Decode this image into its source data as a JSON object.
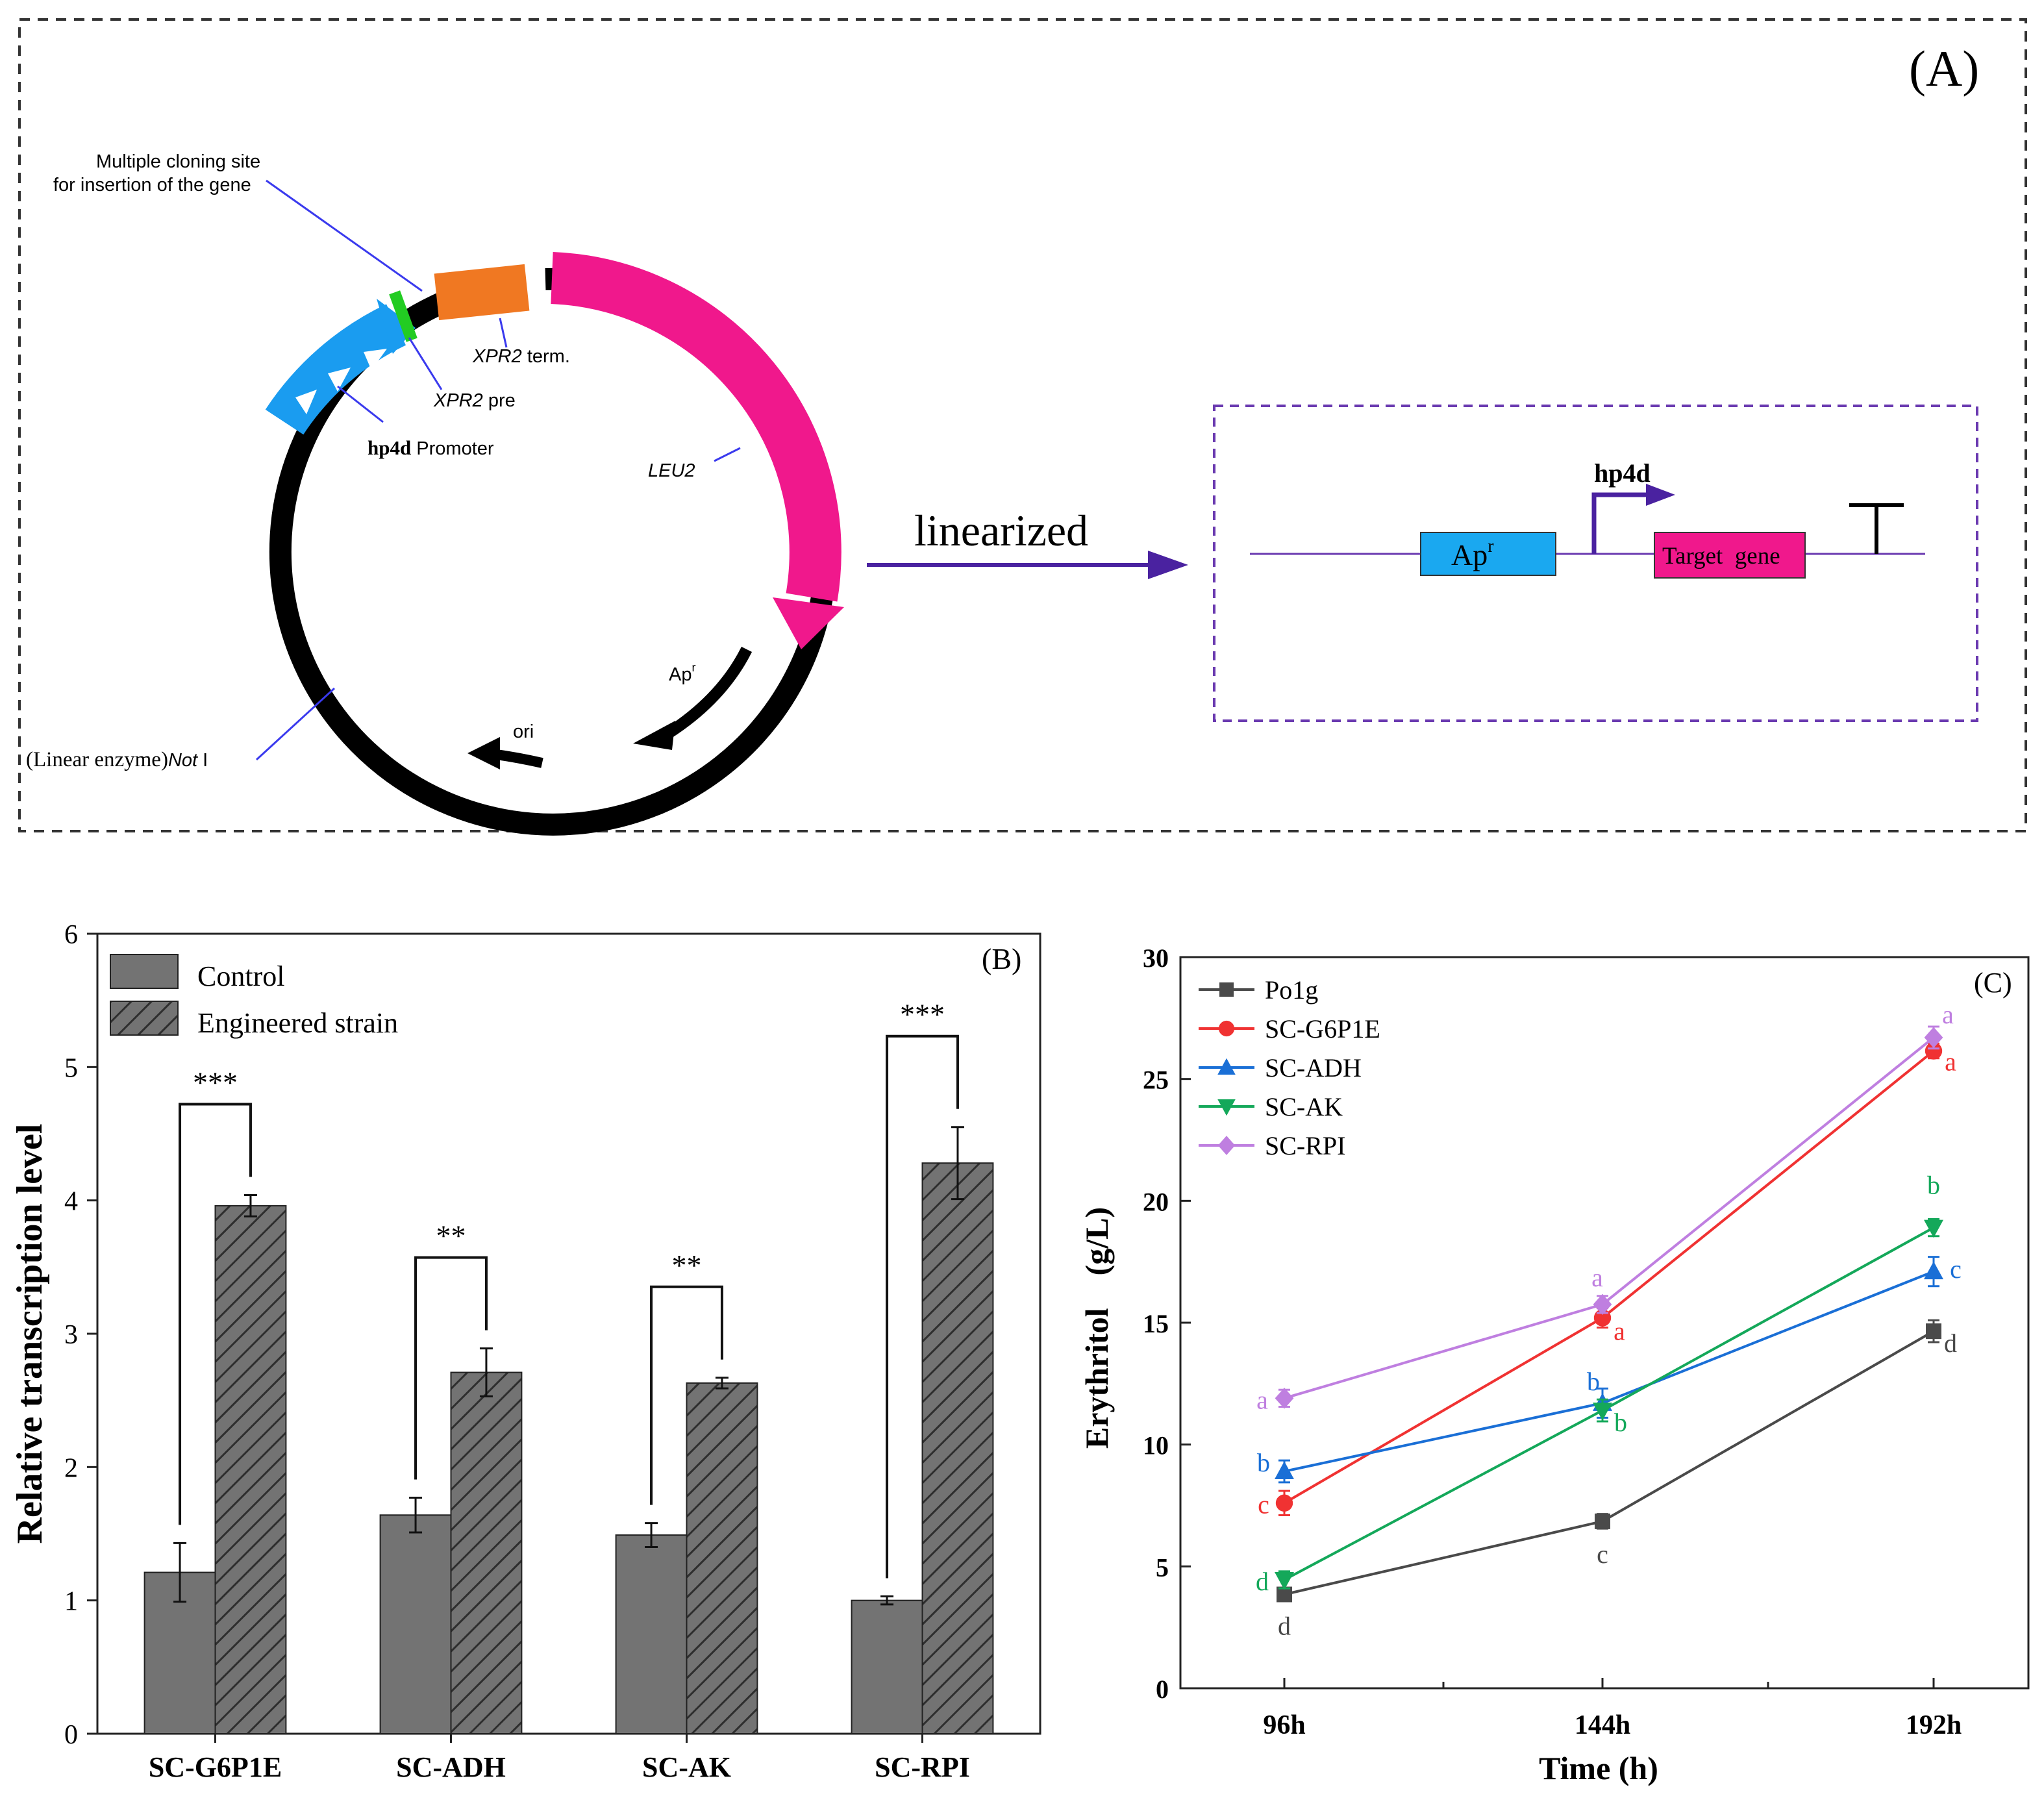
{
  "panel_a": {
    "label": "(A)",
    "plasmid": {
      "mcs_line1": "Multiple cloning site",
      "mcs_line2": "for insertion of the gene",
      "xpr2_term_italic": "XPR2",
      "xpr2_term_rest": " term.",
      "xpr2_pre_italic": "XPR2",
      "xpr2_pre_rest": " pre",
      "promoter_bold": "hp4d",
      "promoter_rest": " Promoter",
      "leu2": "LEU2",
      "apr_base": "Ap",
      "apr_sup": "r",
      "ori": "ori",
      "notI_prefix": "(Linear enzyme)",
      "notI_italic": "Not",
      "notI_suffix": " I",
      "colors": {
        "backbone": "#000000",
        "promoter": "#1a9cf0",
        "xpr2_pre": "#22cc22",
        "xpr2_term": "#f07822",
        "leu2": "#f0188c",
        "pointer": "#3a3aee"
      }
    },
    "arrow_label": "linearized",
    "linear": {
      "apr_base": "Ap",
      "apr_sup": "r",
      "promoter": "hp4d",
      "target": "Target  gene",
      "colors": {
        "line": "#6a3ab0",
        "apr": "#1aa8f0",
        "target": "#f0188c",
        "frame": "#6a3ab0"
      }
    }
  },
  "chart_data": [
    {
      "panel": "(B)",
      "type": "bar",
      "categories": [
        "SC-G6P1E",
        "SC-ADH",
        "SC-AK",
        "SC-RPI"
      ],
      "series": [
        {
          "name": "Control",
          "values": [
            1.21,
            1.64,
            1.49,
            1.0
          ],
          "errors": [
            0.22,
            0.13,
            0.09,
            0.03
          ]
        },
        {
          "name": "Engineered strain",
          "values": [
            3.96,
            2.71,
            2.63,
            4.28
          ],
          "errors": [
            0.08,
            0.18,
            0.04,
            0.27
          ]
        }
      ],
      "significance": [
        "***",
        "**",
        "**",
        "***"
      ],
      "ylabel": "Relative transcription level",
      "ylim": [
        0,
        6
      ],
      "yticks": [
        0,
        1,
        2,
        3,
        4,
        5,
        6
      ],
      "legend_position": "top-left",
      "colors": {
        "control": "#737373",
        "engineered": "#737373"
      }
    },
    {
      "panel": "(C)",
      "type": "line",
      "x": [
        "96h",
        "144h",
        "192h"
      ],
      "xlabel": "Time (h)",
      "ylabel": "Erythritol　(g/L)",
      "ylim": [
        0,
        30
      ],
      "yticks": [
        0,
        5,
        10,
        15,
        20,
        25,
        30
      ],
      "legend_position": "top-left",
      "series": [
        {
          "name": "Po1g",
          "color": "#4a4a4a",
          "marker": "square",
          "values": [
            3.85,
            6.85,
            14.65
          ],
          "errors": [
            0.25,
            0.3,
            0.45
          ],
          "letters": [
            "d",
            "c",
            "d"
          ]
        },
        {
          "name": "SC-G6P1E",
          "color": "#f03232",
          "marker": "circle",
          "values": [
            7.6,
            15.2,
            26.15
          ],
          "errors": [
            0.5,
            0.4,
            0.3
          ],
          "letters": [
            "c",
            "a",
            "a"
          ]
        },
        {
          "name": "SC-ADH",
          "color": "#1a6fd6",
          "marker": "triangle-up",
          "values": [
            8.9,
            11.7,
            17.1
          ],
          "errors": [
            0.45,
            0.6,
            0.6
          ],
          "letters": [
            "b",
            "b",
            "c"
          ]
        },
        {
          "name": "SC-AK",
          "color": "#14a85a",
          "marker": "triangle-down",
          "values": [
            4.45,
            11.4,
            18.9
          ],
          "errors": [
            0.35,
            0.45,
            0.35
          ],
          "letters": [
            "d",
            "b",
            "b"
          ]
        },
        {
          "name": "SC-RPI",
          "color": "#bf7fe0",
          "marker": "diamond",
          "values": [
            11.9,
            15.75,
            26.7
          ],
          "errors": [
            0.35,
            0.35,
            0.45
          ],
          "letters": [
            "a",
            "a",
            "a"
          ]
        }
      ]
    }
  ]
}
